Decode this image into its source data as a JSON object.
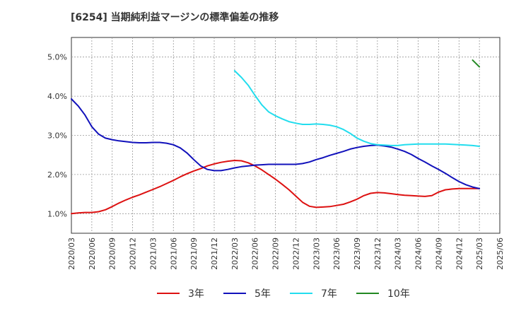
{
  "chart_data": {
    "type": "line",
    "title": "[6254]  当期純利益マージンの標準偏差の推移",
    "xlabel": "",
    "ylabel": "",
    "ylim": [
      0.5,
      5.5
    ],
    "yticks": [
      1.0,
      2.0,
      3.0,
      4.0,
      5.0
    ],
    "ytick_labels": [
      "1.0%",
      "2.0%",
      "3.0%",
      "4.0%",
      "5.0%"
    ],
    "grid": true,
    "legend_position": "bottom",
    "categories": [
      "2020/03",
      "2020/04",
      "2020/05",
      "2020/06",
      "2020/07",
      "2020/08",
      "2020/09",
      "2020/10",
      "2020/11",
      "2020/12",
      "2021/01",
      "2021/02",
      "2021/03",
      "2021/04",
      "2021/05",
      "2021/06",
      "2021/07",
      "2021/08",
      "2021/09",
      "2021/10",
      "2021/11",
      "2021/12",
      "2022/01",
      "2022/02",
      "2022/03",
      "2022/04",
      "2022/05",
      "2022/06",
      "2022/07",
      "2022/08",
      "2022/09",
      "2022/10",
      "2022/11",
      "2022/12",
      "2023/01",
      "2023/02",
      "2023/03",
      "2023/04",
      "2023/05",
      "2023/06",
      "2023/07",
      "2023/08",
      "2023/09",
      "2023/10",
      "2023/11",
      "2023/12",
      "2024/01",
      "2024/02",
      "2024/03",
      "2024/04",
      "2024/05",
      "2024/06",
      "2024/07",
      "2024/08",
      "2024/09",
      "2024/10",
      "2024/11",
      "2024/12",
      "2025/01",
      "2025/02",
      "2025/03",
      "2025/04",
      "2025/05",
      "2025/06"
    ],
    "xtick_labels": [
      "2020/03",
      "2020/06",
      "2020/09",
      "2020/12",
      "2021/03",
      "2021/06",
      "2021/09",
      "2021/12",
      "2022/03",
      "2022/06",
      "2022/09",
      "2022/12",
      "2023/03",
      "2023/06",
      "2023/09",
      "2023/12",
      "2024/03",
      "2024/06",
      "2024/09",
      "2024/12",
      "2025/03",
      "2025/06"
    ],
    "series": [
      {
        "name": "3年",
        "color": "#dd1111",
        "values": [
          1.0,
          1.02,
          1.03,
          1.03,
          1.05,
          1.1,
          1.18,
          1.27,
          1.35,
          1.42,
          1.48,
          1.55,
          1.62,
          1.69,
          1.77,
          1.85,
          1.94,
          2.02,
          2.09,
          2.15,
          2.22,
          2.27,
          2.31,
          2.34,
          2.36,
          2.35,
          2.3,
          2.22,
          2.12,
          2.0,
          1.88,
          1.75,
          1.61,
          1.45,
          1.29,
          1.19,
          1.16,
          1.17,
          1.18,
          1.21,
          1.24,
          1.3,
          1.37,
          1.46,
          1.52,
          1.54,
          1.53,
          1.51,
          1.49,
          1.47,
          1.46,
          1.45,
          1.44,
          1.46,
          1.55,
          1.61,
          1.63,
          1.64,
          1.64,
          1.64,
          1.64,
          null,
          null,
          null
        ]
      },
      {
        "name": "5年",
        "color": "#1111bb",
        "values": [
          3.93,
          3.75,
          3.52,
          3.22,
          3.03,
          2.93,
          2.89,
          2.86,
          2.84,
          2.82,
          2.81,
          2.81,
          2.82,
          2.82,
          2.8,
          2.76,
          2.68,
          2.55,
          2.38,
          2.22,
          2.13,
          2.1,
          2.1,
          2.13,
          2.17,
          2.2,
          2.22,
          2.24,
          2.25,
          2.26,
          2.26,
          2.26,
          2.26,
          2.26,
          2.28,
          2.32,
          2.38,
          2.43,
          2.49,
          2.54,
          2.59,
          2.65,
          2.69,
          2.72,
          2.74,
          2.75,
          2.73,
          2.7,
          2.65,
          2.59,
          2.51,
          2.41,
          2.32,
          2.22,
          2.13,
          2.03,
          1.92,
          1.82,
          1.74,
          1.68,
          1.64,
          null,
          null,
          null
        ]
      },
      {
        "name": "7年",
        "color": "#22ddee",
        "values": [
          null,
          null,
          null,
          null,
          null,
          null,
          null,
          null,
          null,
          null,
          null,
          null,
          null,
          null,
          null,
          null,
          null,
          null,
          null,
          null,
          null,
          null,
          null,
          null,
          4.65,
          4.48,
          4.28,
          4.02,
          3.78,
          3.6,
          3.5,
          3.42,
          3.35,
          3.31,
          3.28,
          3.28,
          3.29,
          3.28,
          3.26,
          3.22,
          3.15,
          3.05,
          2.93,
          2.85,
          2.79,
          2.76,
          2.75,
          2.74,
          2.74,
          2.76,
          2.77,
          2.78,
          2.78,
          2.78,
          2.78,
          2.78,
          2.77,
          2.76,
          2.75,
          2.74,
          2.72,
          null,
          null,
          null
        ]
      },
      {
        "name": "10年",
        "color": "#228822",
        "values": [
          null,
          null,
          null,
          null,
          null,
          null,
          null,
          null,
          null,
          null,
          null,
          null,
          null,
          null,
          null,
          null,
          null,
          null,
          null,
          null,
          null,
          null,
          null,
          null,
          null,
          null,
          null,
          null,
          null,
          null,
          null,
          null,
          null,
          null,
          null,
          null,
          null,
          null,
          null,
          null,
          null,
          null,
          null,
          null,
          null,
          null,
          null,
          null,
          null,
          null,
          null,
          null,
          null,
          null,
          null,
          null,
          null,
          null,
          null,
          4.92,
          4.75,
          null,
          null,
          null
        ]
      }
    ]
  }
}
